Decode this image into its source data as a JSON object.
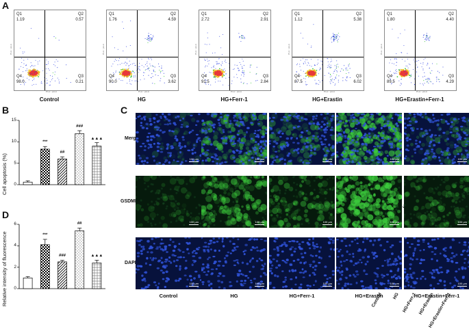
{
  "panel_labels": {
    "a": "A",
    "b": "B",
    "c": "C",
    "d": "D"
  },
  "flow": {
    "quadrant_names": [
      "Q1",
      "Q2",
      "Q3",
      "Q4"
    ],
    "axis_text": "PI-A :: pH-A",
    "panels": [
      {
        "title": "Control",
        "q1": "1.19",
        "q2": "0.57",
        "q3": "0.21",
        "q4": "98.0",
        "pattern": "control"
      },
      {
        "title": "HG",
        "q1": "1.76",
        "q2": "4.59",
        "q3": "3.62",
        "q4": "90.0",
        "pattern": "hg"
      },
      {
        "title": "HG+Ferr-1",
        "q1": "2.72",
        "q2": "2.91",
        "q3": "2.84",
        "q4": "91.5",
        "pattern": "ferr"
      },
      {
        "title": "HG+Erastin",
        "q1": "1.12",
        "q2": "5.38",
        "q3": "6.02",
        "q4": "87.5",
        "pattern": "erastin"
      },
      {
        "title": "HG+Erastin+Ferr-1",
        "q1": "1.80",
        "q2": "4.40",
        "q3": "4.29",
        "q4": "89.5",
        "pattern": "both"
      }
    ]
  },
  "chart_data": [
    {
      "type": "bar",
      "title": "",
      "ylabel": "Cell apoptosis (%)",
      "ylim": [
        0,
        15
      ],
      "yticks": [
        "0",
        "5",
        "10",
        "15"
      ],
      "categories": [
        "Control",
        "HG",
        "HG+Ferr-1",
        "HG+Erastin",
        "HG+Erastin+Ferr-1"
      ],
      "values": [
        0.6,
        8.3,
        6.0,
        11.9,
        9.0
      ],
      "errors": [
        0.3,
        0.6,
        0.5,
        0.7,
        0.8
      ],
      "significance": [
        "",
        "***",
        "##",
        "###",
        "▲▲▲"
      ]
    },
    {
      "type": "bar",
      "title": "",
      "ylabel": "Relative intensity of fluorescence",
      "ylim": [
        0,
        6
      ],
      "yticks": [
        "0",
        "2",
        "4",
        "6"
      ],
      "categories": [
        "Control",
        "HG",
        "HG+Ferr-1",
        "HG+Erastin",
        "HG+Erastin+Ferr-1"
      ],
      "values": [
        1.0,
        4.1,
        2.5,
        5.4,
        2.4
      ],
      "errors": [
        0.12,
        0.5,
        0.15,
        0.25,
        0.25
      ],
      "significance": [
        "",
        "***",
        "###",
        "##",
        "▲▲▲"
      ]
    }
  ],
  "microscopy": {
    "rows": [
      "Merge",
      "GSDMD",
      "DAPI"
    ],
    "columns": [
      "Control",
      "HG",
      "HG+Ferr-1",
      "HG+Erastin",
      "HG+Erastin+Ferr-1"
    ],
    "scale": "100 μm",
    "colors": {
      "nucleus": "#2f52d8",
      "gsdmd": "#3ccb3c",
      "background": "#07123c"
    }
  }
}
